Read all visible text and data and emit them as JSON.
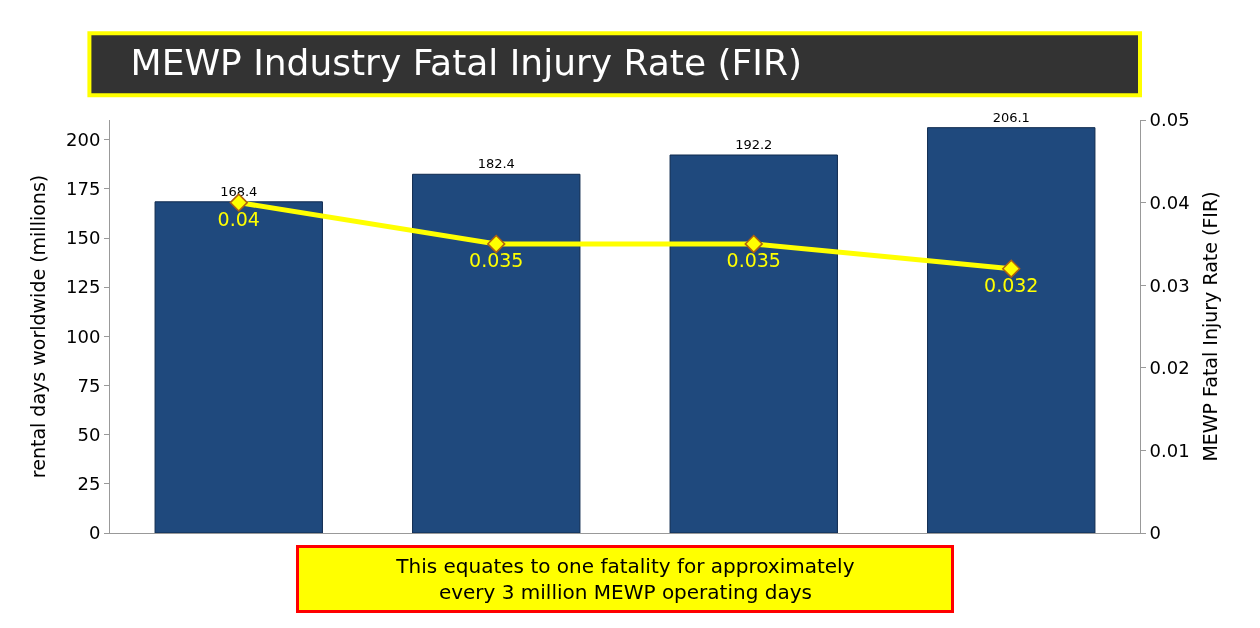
{
  "chart_data": {
    "type": "bar",
    "title": "MEWP Industry Fatal Injury Rate (FIR)",
    "categories": [
      null,
      null,
      null,
      null
    ],
    "series": [
      {
        "color": "#1f497d",
        "values": [
          168.4,
          182.4,
          192.2,
          206.1
        ]
      },
      {
        "type": "line",
        "axis": "y2",
        "color": "#ffff00",
        "marker": "diamond",
        "values": [
          0.04,
          0.035,
          0.035,
          0.032
        ]
      }
    ],
    "ylabel": "rental days worldwide (millions)",
    "y2label": "MEWP Fatal Injury Rate (FIR)",
    "ylim": [
      0,
      210
    ],
    "yticks": [
      0,
      25,
      50,
      75,
      100,
      125,
      150,
      175,
      200
    ],
    "y2lim": [
      0,
      0.05
    ],
    "y2ticks": [
      0,
      0.01,
      0.02,
      0.03,
      0.04,
      0.05
    ],
    "data_labels": true,
    "annotations": [
      "This equates to one fatality for approximately every 3 million MEWP operating days"
    ]
  }
}
